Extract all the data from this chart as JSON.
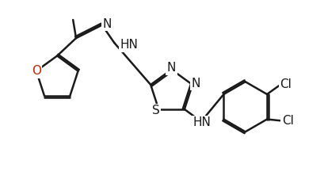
{
  "bg_color": "#ffffff",
  "line_color": "#1a1a1a",
  "n_color": "#1a1a1a",
  "s_color": "#1a1a1a",
  "o_color": "#cc2200",
  "cl_color": "#1a1a1a",
  "line_width": 1.8,
  "font_size": 11,
  "figsize": [
    4.1,
    2.31
  ],
  "dpi": 100,
  "xlim": [
    0,
    10
  ],
  "ylim": [
    0,
    6
  ]
}
